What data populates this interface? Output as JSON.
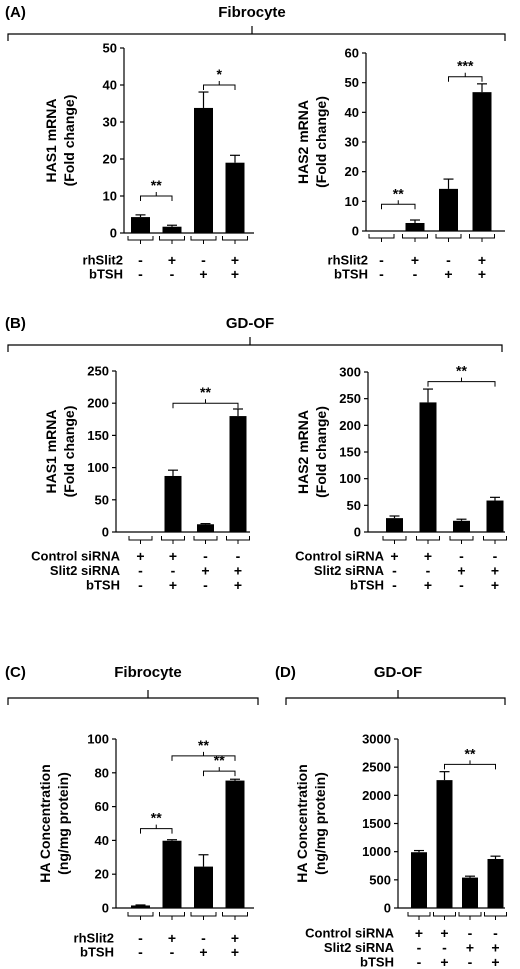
{
  "panels": [
    {
      "label": "(A)"
    },
    {
      "label": "(B)"
    },
    {
      "label": "(C)"
    },
    {
      "label": "(D)"
    }
  ],
  "groups": [
    "Fibrocyte",
    "GD-OF",
    "Fibrocyte",
    "GD-OF"
  ],
  "chart_data": [
    {
      "type": "bar",
      "panel": "(A)",
      "ylabel": [
        "HAS1 mRNA",
        "(Fold change)"
      ],
      "ylim": [
        0,
        50
      ],
      "yticks": [
        0,
        10,
        20,
        30,
        40,
        50
      ],
      "values": [
        4.3,
        1.7,
        33.8,
        19.0
      ],
      "errors": [
        0.6,
        0.4,
        4.3,
        2.0
      ],
      "conditions": [
        {
          "name": "rhSlit2",
          "signs": [
            "-",
            "+",
            "-",
            "+"
          ]
        },
        {
          "name": "bTSH",
          "signs": [
            "-",
            "-",
            "+",
            "+"
          ]
        }
      ],
      "significance": [
        {
          "from": 0,
          "to": 1,
          "y": 10,
          "label": "**"
        },
        {
          "from": 2,
          "to": 3,
          "y": 40,
          "label": "*"
        }
      ]
    },
    {
      "type": "bar",
      "panel": "(A)",
      "ylabel": [
        "HAS2 mRNA",
        "(Fold change)"
      ],
      "ylim": [
        0,
        60
      ],
      "yticks": [
        0,
        10,
        20,
        30,
        40,
        50,
        60
      ],
      "values": [
        0,
        2.7,
        14.2,
        46.8
      ],
      "errors": [
        0,
        1.0,
        3.3,
        2.8
      ],
      "conditions": [
        {
          "name": "rhSlit2",
          "signs": [
            "-",
            "+",
            "-",
            "+"
          ]
        },
        {
          "name": "bTSH",
          "signs": [
            "-",
            "-",
            "+",
            "+"
          ]
        }
      ],
      "significance": [
        {
          "from": 0,
          "to": 1,
          "y": 9,
          "label": "**"
        },
        {
          "from": 2,
          "to": 3,
          "y": 52,
          "label": "***"
        }
      ]
    },
    {
      "type": "bar",
      "panel": "(B)",
      "ylabel": [
        "HAS1 mRNA",
        "(Fold change)"
      ],
      "ylim": [
        0,
        250
      ],
      "yticks": [
        0,
        50,
        100,
        150,
        200,
        250
      ],
      "values": [
        0,
        87,
        12,
        180
      ],
      "errors": [
        0,
        9,
        1,
        11
      ],
      "conditions": [
        {
          "name": "Control siRNA",
          "signs": [
            "+",
            "+",
            "-",
            "-"
          ]
        },
        {
          "name": "Slit2 siRNA",
          "signs": [
            "-",
            "-",
            "+",
            "+"
          ]
        },
        {
          "name": "bTSH",
          "signs": [
            "-",
            "+",
            "-",
            "+"
          ]
        }
      ],
      "significance": [
        {
          "from": 1,
          "to": 3,
          "y": 200,
          "label": "**"
        }
      ]
    },
    {
      "type": "bar",
      "panel": "(B)",
      "ylabel": [
        "HAS2 mRNA",
        "(Fold change)"
      ],
      "ylim": [
        0,
        300
      ],
      "yticks": [
        0,
        50,
        100,
        150,
        200,
        250,
        300
      ],
      "values": [
        26,
        243,
        21,
        59
      ],
      "errors": [
        4,
        25,
        3,
        6
      ],
      "conditions": [
        {
          "name": "Control siRNA",
          "signs": [
            "+",
            "+",
            "-",
            "-"
          ]
        },
        {
          "name": "Slit2 siRNA",
          "signs": [
            "-",
            "-",
            "+",
            "+"
          ]
        },
        {
          "name": "bTSH",
          "signs": [
            "-",
            "+",
            "-",
            "+"
          ]
        }
      ],
      "significance": [
        {
          "from": 1,
          "to": 3,
          "y": 282,
          "label": "**"
        }
      ]
    },
    {
      "type": "bar",
      "panel": "(C)",
      "ylabel": [
        "HA Concentration",
        "(ng/mg protein)"
      ],
      "ylim": [
        0,
        100
      ],
      "yticks": [
        0,
        20,
        40,
        60,
        80,
        100
      ],
      "values": [
        1.5,
        39.8,
        24.5,
        75.4
      ],
      "errors": [
        0.3,
        0.6,
        7.0,
        0.8
      ],
      "conditions": [
        {
          "name": "rhSlit2",
          "signs": [
            "-",
            "+",
            "-",
            "+"
          ]
        },
        {
          "name": "bTSH",
          "signs": [
            "-",
            "-",
            "+",
            "+"
          ]
        }
      ],
      "significance": [
        {
          "from": 0,
          "to": 1,
          "y": 47,
          "label": "**"
        },
        {
          "from": 2,
          "to": 3,
          "y": 81,
          "label": "**"
        },
        {
          "from": 1,
          "to": 3,
          "y": 90,
          "label": "**"
        }
      ]
    },
    {
      "type": "bar",
      "panel": "(D)",
      "ylabel": [
        "HA Concentration",
        "(ng/mg protein)"
      ],
      "ylim": [
        0,
        3000
      ],
      "yticks": [
        0,
        500,
        1000,
        1500,
        2000,
        2500,
        3000
      ],
      "values": [
        990,
        2270,
        540,
        870
      ],
      "errors": [
        30,
        150,
        25,
        50
      ],
      "conditions": [
        {
          "name": "Control siRNA",
          "signs": [
            "+",
            "+",
            "-",
            "-"
          ]
        },
        {
          "name": "Slit2 siRNA",
          "signs": [
            "-",
            "-",
            "+",
            "+"
          ]
        },
        {
          "name": "bTSH",
          "signs": [
            "-",
            "+",
            "-",
            "+"
          ]
        }
      ],
      "significance": [
        {
          "from": 1,
          "to": 3,
          "y": 2550,
          "label": "**"
        }
      ]
    }
  ]
}
